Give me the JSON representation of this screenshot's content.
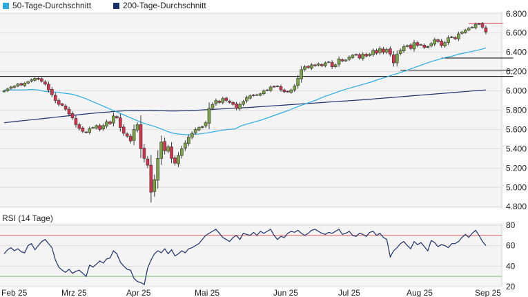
{
  "chart_data": [
    {
      "type": "candlestick",
      "title": "",
      "legend": [
        {
          "name": "50-Tage-Durchschnitt",
          "color": "#29abe2"
        },
        {
          "name": "200-Tage-Durchschnitt",
          "color": "#1b2f6b"
        }
      ],
      "legend_position": "top-left",
      "y_ticks": [
        "6.800",
        "6.600",
        "6.400",
        "6.200",
        "6.000",
        "5.800",
        "5.600",
        "5.400",
        "5.200",
        "5.000",
        "4.800"
      ],
      "ylim": [
        4780,
        6820
      ],
      "x_ticks": [
        {
          "label": "Feb 25",
          "t": 0
        },
        {
          "label": "Mrz 25",
          "t": 20
        },
        {
          "label": "Apr 25",
          "t": 39
        },
        {
          "label": "Mai 25",
          "t": 59
        },
        {
          "label": "Jun 25",
          "t": 82
        },
        {
          "label": "Jul 25",
          "t": 101
        },
        {
          "label": "Aug 25",
          "t": 121
        },
        {
          "label": "Sep 25",
          "t": 141
        }
      ],
      "up_color": "#7aa342",
      "down_color": "#d9304b",
      "close": [
        6000,
        6020,
        6040,
        6050,
        6070,
        6060,
        6080,
        6095,
        6115,
        6130,
        6120,
        6100,
        6070,
        6010,
        5960,
        5900,
        5860,
        5850,
        5810,
        5760,
        5720,
        5650,
        5610,
        5580,
        5570,
        5610,
        5620,
        5640,
        5600,
        5640,
        5680,
        5660,
        5740,
        5720,
        5620,
        5560,
        5530,
        5480,
        5600,
        5650,
        5400,
        5300,
        5230,
        4950,
        5080,
        5300,
        5470,
        5380,
        5420,
        5300,
        5250,
        5330,
        5400,
        5460,
        5520,
        5560,
        5600,
        5620,
        5630,
        5670,
        5820,
        5860,
        5900,
        5880,
        5920,
        5900,
        5880,
        5860,
        5820,
        5860,
        5890,
        5930,
        5950,
        5950,
        5960,
        5970,
        6000,
        6010,
        6040,
        6040,
        6050,
        6010,
        5990,
        5990,
        6010,
        6050,
        6130,
        6220,
        6250,
        6240,
        6270,
        6260,
        6280,
        6260,
        6290,
        6300,
        6250,
        6270,
        6330,
        6310,
        6320,
        6350,
        6370,
        6370,
        6340,
        6380,
        6360,
        6380,
        6420,
        6390,
        6440,
        6400,
        6430,
        6380,
        6290,
        6380,
        6420,
        6460,
        6470,
        6440,
        6500,
        6470,
        6480,
        6450,
        6460,
        6490,
        6530,
        6510,
        6470,
        6500,
        6550,
        6560,
        6540,
        6590,
        6610,
        6630,
        6650,
        6660,
        6690,
        6690,
        6660,
        6610
      ],
      "ma50": [
        6010,
        6010,
        6010,
        6010,
        6015,
        6010,
        5995,
        5990,
        5985,
        5975,
        5965,
        5945,
        5920,
        5890,
        5860,
        5830,
        5800,
        5770,
        5740,
        5710,
        5680,
        5655,
        5635,
        5610,
        5580,
        5560,
        5550,
        5545,
        5550,
        5555,
        5565,
        5578,
        5590,
        5600,
        5605,
        5640,
        5660,
        5680,
        5700,
        5725,
        5750,
        5775,
        5800,
        5830,
        5855,
        5880,
        5905,
        5935,
        5960,
        5985,
        6010,
        6030,
        6050,
        6070,
        6090,
        6115,
        6135,
        6160,
        6180,
        6205,
        6230,
        6255,
        6280,
        6305,
        6325,
        6345,
        6360,
        6380,
        6395,
        6410,
        6425,
        6445
      ],
      "ma200": [
        5670,
        5678,
        5686,
        5694,
        5702,
        5710,
        5718,
        5726,
        5734,
        5742,
        5750,
        5758,
        5766,
        5772,
        5778,
        5784,
        5790,
        5794,
        5796,
        5797,
        5797,
        5796,
        5794,
        5792,
        5792,
        5794,
        5797,
        5800,
        5804,
        5808,
        5812,
        5816,
        5820,
        5824,
        5828,
        5833,
        5838,
        5843,
        5848,
        5853,
        5858,
        5863,
        5868,
        5873,
        5878,
        5883,
        5888,
        5893,
        5898,
        5903,
        5908,
        5914,
        5920,
        5926,
        5932,
        5938,
        5944,
        5950,
        5956,
        5962,
        5968,
        5974,
        5980,
        5986,
        5992,
        5998,
        6004,
        6010
      ],
      "hlines": [
        {
          "price": 6700,
          "t0": 136,
          "t1": 146,
          "color": "#d9304b"
        },
        {
          "price": 6340,
          "t0": 128,
          "t1": 149,
          "color": "#000000"
        },
        {
          "price": 6215,
          "t0": 116,
          "t1": 149,
          "color": "#000000"
        },
        {
          "price": 6150,
          "t0": -1,
          "t1": 149,
          "color": "#000000"
        }
      ]
    },
    {
      "type": "line",
      "title": "RSI (14 Tage)",
      "y_ticks": [
        "80",
        "60",
        "40",
        "20"
      ],
      "ylim": [
        20,
        82
      ],
      "bands": [
        {
          "value": 70,
          "color": "#e06060"
        },
        {
          "value": 30,
          "color": "#7cc36f"
        }
      ],
      "series": [
        {
          "values": [
            52,
            56,
            58,
            55,
            57,
            54,
            53,
            60,
            62,
            56,
            60,
            64,
            66,
            62,
            58,
            46,
            39,
            36,
            34,
            37,
            33,
            35,
            36,
            33,
            30,
            41,
            39,
            42,
            45,
            43,
            47,
            48,
            55,
            52,
            44,
            40,
            37,
            36,
            28,
            25,
            24,
            22,
            38,
            46,
            52,
            55,
            53,
            57,
            52,
            56,
            50,
            52,
            55,
            53,
            57,
            58,
            60,
            62,
            66,
            70,
            72,
            74,
            76,
            72,
            68,
            66,
            64,
            68,
            70,
            66,
            72,
            71,
            70,
            73,
            70,
            74,
            72,
            74,
            76,
            70,
            66,
            69,
            68,
            72,
            74,
            73,
            75,
            72,
            70,
            72,
            75,
            76,
            74,
            72,
            71,
            73,
            72,
            74,
            76,
            71,
            72,
            74,
            70,
            69,
            72,
            71,
            69,
            73,
            74,
            70,
            72,
            68,
            66,
            49,
            55,
            58,
            62,
            64,
            60,
            57,
            64,
            61,
            63,
            59,
            55,
            65,
            63,
            59,
            61,
            60,
            58,
            62,
            62,
            64,
            68,
            71,
            68,
            72,
            75,
            70,
            64,
            60
          ]
        }
      ]
    }
  ]
}
